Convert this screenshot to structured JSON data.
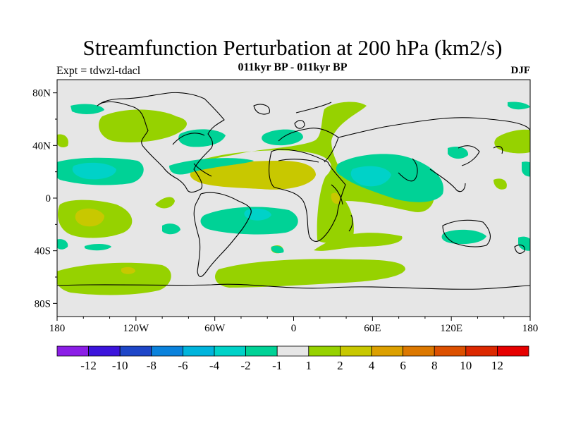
{
  "plot": {
    "title": "Streamfunction Perturbation at 200 hPa (km2/s)",
    "subtitle": "011kyr BP - 011kyr BP",
    "left_string": "Expt = tdwzl-tdacl",
    "right_string": "DJF"
  },
  "axes": {
    "lat_labels": [
      "80N",
      "40N",
      "0",
      "40S",
      "80S"
    ],
    "lat_values": [
      80,
      40,
      0,
      -40,
      -80
    ],
    "lon_labels": [
      "180",
      "120W",
      "60W",
      "0",
      "60E",
      "120E",
      "180"
    ],
    "lon_values": [
      -180,
      -120,
      -60,
      0,
      60,
      120,
      180
    ]
  },
  "colorbar": {
    "colors": [
      "#8b1ee6",
      "#3c14dc",
      "#1e46c8",
      "#0a82dc",
      "#00b4dc",
      "#00d2c8",
      "#00d296",
      "#e6e6e6",
      "#96d200",
      "#c8c800",
      "#dca000",
      "#dc7800",
      "#dc5000",
      "#dc2800",
      "#e60000"
    ],
    "labels": [
      "-12",
      "-10",
      "-8",
      "-6",
      "-4",
      "-2",
      "-1",
      "1",
      "2",
      "4",
      "6",
      "8",
      "10",
      "12"
    ]
  },
  "map": {
    "background_color": "#e6e6e6",
    "coastline_color": "#000000"
  }
}
